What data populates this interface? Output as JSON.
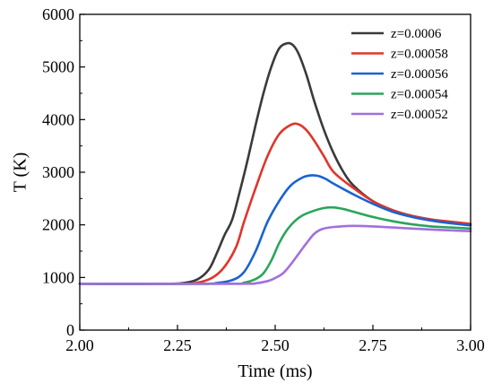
{
  "chart_data": {
    "type": "line",
    "xlabel": "Time (ms)",
    "ylabel": "T (K)",
    "xlim": [
      2.0,
      3.0
    ],
    "ylim": [
      0,
      6000
    ],
    "xticks": [
      "2.00",
      "2.25",
      "2.50",
      "2.75",
      "3.00"
    ],
    "yticks": [
      "0",
      "1000",
      "2000",
      "3000",
      "4000",
      "5000",
      "6000"
    ],
    "grid": false,
    "legend_position": "top-right",
    "series": [
      {
        "name": "z=0.0006",
        "color": "#3a3a3a",
        "x": [
          2.0,
          2.2,
          2.26,
          2.3,
          2.33,
          2.35,
          2.37,
          2.39,
          2.41,
          2.43,
          2.45,
          2.47,
          2.49,
          2.51,
          2.53,
          2.545,
          2.56,
          2.58,
          2.6,
          2.625,
          2.65,
          2.675,
          2.7,
          2.75,
          2.8,
          2.85,
          2.9,
          2.95,
          3.0
        ],
        "y": [
          880,
          880,
          890,
          960,
          1150,
          1450,
          1800,
          2100,
          2650,
          3250,
          3900,
          4500,
          5000,
          5350,
          5450,
          5420,
          5250,
          4850,
          4350,
          3800,
          3350,
          3000,
          2750,
          2450,
          2280,
          2170,
          2100,
          2050,
          2010
        ]
      },
      {
        "name": "z=0.00058",
        "color": "#e0352b",
        "x": [
          2.0,
          2.25,
          2.3,
          2.34,
          2.37,
          2.4,
          2.42,
          2.45,
          2.48,
          2.51,
          2.54,
          2.56,
          2.58,
          2.6,
          2.625,
          2.65,
          2.7,
          2.75,
          2.8,
          2.85,
          2.9,
          2.95,
          3.0
        ],
        "y": [
          880,
          880,
          900,
          1000,
          1200,
          1580,
          2050,
          2700,
          3300,
          3720,
          3900,
          3910,
          3800,
          3600,
          3300,
          3000,
          2700,
          2450,
          2280,
          2170,
          2100,
          2060,
          2020
        ]
      },
      {
        "name": "z=0.00056",
        "color": "#1a62d2",
        "x": [
          2.0,
          2.3,
          2.35,
          2.39,
          2.42,
          2.45,
          2.48,
          2.51,
          2.54,
          2.57,
          2.59,
          2.61,
          2.63,
          2.65,
          2.7,
          2.75,
          2.8,
          2.85,
          2.9,
          2.95,
          3.0
        ],
        "y": [
          880,
          880,
          895,
          950,
          1100,
          1500,
          2050,
          2450,
          2750,
          2900,
          2940,
          2930,
          2870,
          2780,
          2580,
          2400,
          2250,
          2150,
          2080,
          2030,
          1990
        ]
      },
      {
        "name": "z=0.00054",
        "color": "#2aa55a",
        "x": [
          2.0,
          2.38,
          2.42,
          2.45,
          2.47,
          2.49,
          2.51,
          2.53,
          2.55,
          2.57,
          2.6,
          2.625,
          2.65,
          2.675,
          2.7,
          2.75,
          2.8,
          2.85,
          2.9,
          2.95,
          3.0
        ],
        "y": [
          880,
          880,
          900,
          970,
          1080,
          1320,
          1650,
          1900,
          2070,
          2180,
          2270,
          2320,
          2330,
          2300,
          2250,
          2150,
          2070,
          2010,
          1970,
          1950,
          1930
        ]
      },
      {
        "name": "z=0.00052",
        "color": "#a36fdf",
        "x": [
          2.0,
          2.4,
          2.45,
          2.48,
          2.5,
          2.52,
          2.54,
          2.56,
          2.58,
          2.6,
          2.62,
          2.65,
          2.7,
          2.75,
          2.8,
          2.85,
          2.9,
          2.95,
          3.0
        ],
        "y": [
          880,
          880,
          890,
          930,
          990,
          1080,
          1250,
          1450,
          1650,
          1830,
          1920,
          1960,
          1980,
          1970,
          1950,
          1930,
          1910,
          1895,
          1880
        ]
      }
    ]
  }
}
